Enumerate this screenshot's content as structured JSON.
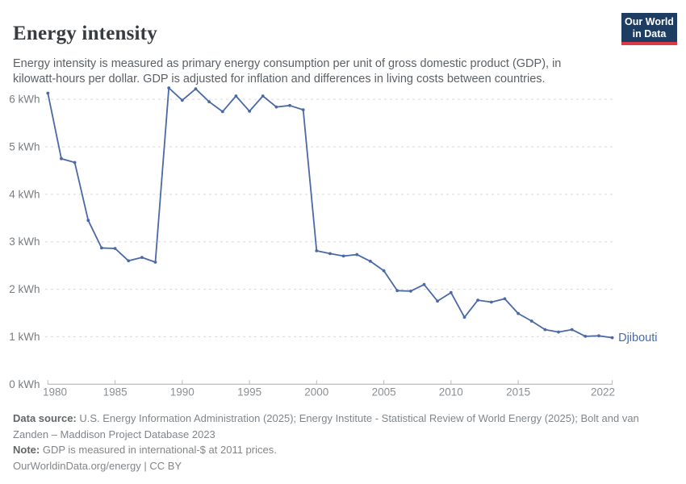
{
  "header": {
    "title": "Energy intensity",
    "subtitle": "Energy intensity is measured as primary energy consumption per unit of gross domestic product (GDP), in kilowatt-hours per dollar. GDP is adjusted for inflation and differences in living costs between countries.",
    "logo": {
      "line1": "Our World",
      "line2": "in Data"
    }
  },
  "colors": {
    "series_blue": "#4a69a5",
    "logo_navy": "#1d3d63",
    "logo_red": "#d93a45",
    "gridline_gray": "#dadada",
    "axis_gray": "#a8abae"
  },
  "chart_data": {
    "type": "line",
    "title": "Energy intensity",
    "xlabel": "",
    "ylabel": "",
    "unit": "kWh",
    "xlim": [
      1980,
      2022
    ],
    "ylim": [
      0,
      6.35
    ],
    "x_ticks": [
      1980,
      1985,
      1990,
      1995,
      2000,
      2005,
      2010,
      2015,
      2022
    ],
    "y_ticks": [
      0,
      1,
      2,
      3,
      4,
      5,
      6
    ],
    "y_tick_suffix": " kWh",
    "grid": "horizontal-dashed",
    "legend": "end-of-line-label",
    "series": [
      {
        "name": "Djibouti",
        "color": "#4a69a5",
        "x": [
          1980,
          1981,
          1982,
          1983,
          1984,
          1985,
          1986,
          1987,
          1988,
          1989,
          1990,
          1991,
          1992,
          1993,
          1994,
          1995,
          1996,
          1997,
          1998,
          1999,
          2000,
          2001,
          2002,
          2003,
          2004,
          2005,
          2006,
          2007,
          2008,
          2009,
          2010,
          2011,
          2012,
          2013,
          2014,
          2015,
          2016,
          2017,
          2018,
          2019,
          2020,
          2021,
          2022
        ],
        "values": [
          6.13,
          4.75,
          4.67,
          3.45,
          2.87,
          2.86,
          2.6,
          2.67,
          2.57,
          6.24,
          5.98,
          6.22,
          5.95,
          5.74,
          6.07,
          5.75,
          6.07,
          5.84,
          5.87,
          5.78,
          2.81,
          2.75,
          2.7,
          2.73,
          2.59,
          2.39,
          1.97,
          1.96,
          2.1,
          1.75,
          1.93,
          1.41,
          1.77,
          1.73,
          1.8,
          1.49,
          1.33,
          1.15,
          1.1,
          1.15,
          1.01,
          1.02,
          0.98
        ]
      }
    ]
  },
  "footer": {
    "data_source_label": "Data source:",
    "data_source_text": " U.S. Energy Information Administration (2025); Energy Institute - Statistical Review of World Energy (2025); Bolt and van Zanden – Maddison Project Database 2023",
    "note_label": "Note:",
    "note_text": " GDP is measured in international-$ at 2011 prices.",
    "link_text": "OurWorldinData.org/energy",
    "after_link": " | CC BY"
  }
}
